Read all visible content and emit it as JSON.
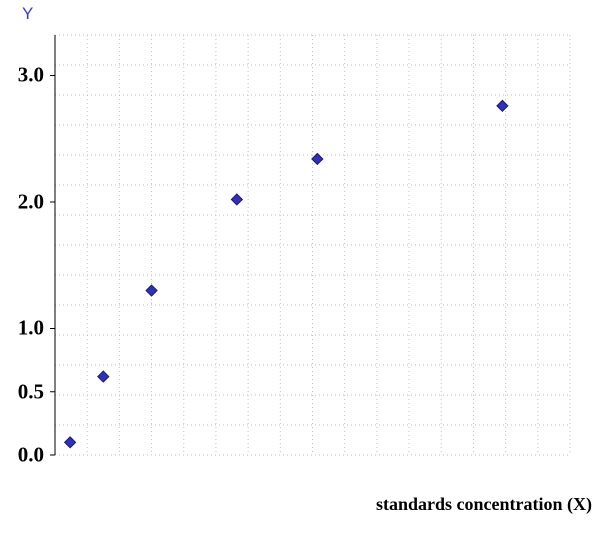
{
  "page": {
    "background": "#ffffff"
  },
  "chart_data": {
    "type": "scatter",
    "title": "",
    "xlabel": "standards concentration (X)",
    "ylabel": "Y",
    "ylabel_color": "#3c3ccc",
    "x_range": [
      0,
      16
    ],
    "y_range": [
      0,
      3.32
    ],
    "x_tick_labels": [],
    "y_ticks": [
      {
        "value": 0.0,
        "label": "0.0"
      },
      {
        "value": 0.5,
        "label": "0.5"
      },
      {
        "value": 1.0,
        "label": "1.0"
      },
      {
        "value": 2.0,
        "label": "2.0"
      },
      {
        "value": 3.0,
        "label": "3.0"
      }
    ],
    "points": [
      {
        "x": 0.47,
        "y": 0.1
      },
      {
        "x": 1.5,
        "y": 0.62
      },
      {
        "x": 3.0,
        "y": 1.3
      },
      {
        "x": 5.65,
        "y": 2.02
      },
      {
        "x": 8.15,
        "y": 2.34
      },
      {
        "x": 13.9,
        "y": 2.76
      }
    ],
    "marker": {
      "shape": "diamond",
      "color": "#3030b8",
      "border": "#1a1a70",
      "size": 11
    },
    "grid": {
      "show": true,
      "color": "#bfbfbf",
      "style": "dotted",
      "x_divisions": 16,
      "y_divisions": 14
    },
    "axis_color": "#000000",
    "legend": "none"
  }
}
